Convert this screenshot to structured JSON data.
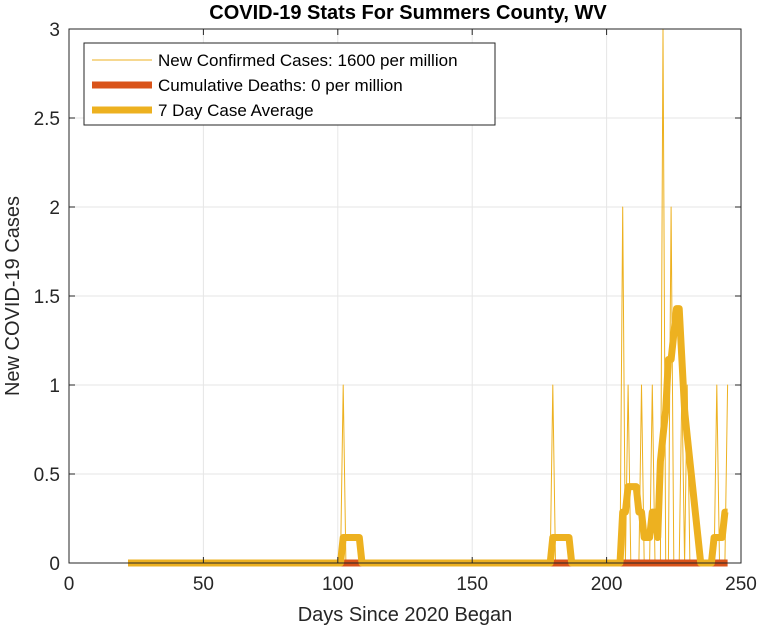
{
  "chart_data": {
    "type": "line",
    "title": "COVID-19 Stats For Summers County, WV",
    "xlabel": "Days Since 2020 Began",
    "ylabel": "New COVID-19 Cases",
    "xlim": [
      0,
      250
    ],
    "ylim": [
      0,
      3
    ],
    "xticks": [
      0,
      50,
      100,
      150,
      200,
      250
    ],
    "yticks": [
      0,
      0.5,
      1,
      1.5,
      2,
      2.5,
      3
    ],
    "xtick_labels": [
      "0",
      "50",
      "100",
      "150",
      "200",
      "250"
    ],
    "ytick_labels": [
      "0",
      "0.5",
      "1",
      "1.5",
      "2",
      "2.5",
      "3"
    ],
    "grid": true,
    "legend_position": "top-left",
    "series": [
      {
        "name": "New Confirmed Cases: 1600 per million",
        "color": "#EDB120",
        "style": "thin",
        "x": [
          22,
          101,
          102,
          103,
          179,
          180,
          181,
          205,
          206,
          207,
          208,
          209,
          212,
          213,
          214,
          216,
          217,
          218,
          220,
          221,
          222,
          223,
          224,
          225,
          227,
          228,
          229,
          230,
          231,
          232,
          240,
          241,
          242,
          244,
          245
        ],
        "y": [
          0,
          0,
          1,
          0,
          0,
          1,
          0,
          0,
          2,
          0,
          1,
          0,
          0,
          1,
          0,
          0,
          1,
          0,
          0,
          3,
          0,
          0,
          2,
          0,
          0,
          1,
          0,
          1,
          0,
          0,
          0,
          1,
          0,
          0,
          1
        ]
      },
      {
        "name": "Cumulative Deaths: 0 per million",
        "color": "#D95319",
        "style": "thick",
        "x": [
          22,
          245
        ],
        "y": [
          0,
          0
        ]
      },
      {
        "name": "7 Day Case Average",
        "color": "#EDB120",
        "style": "thick",
        "x": [
          22,
          101,
          102,
          108,
          109,
          179,
          180,
          186,
          187,
          205,
          206,
          207,
          208,
          209,
          210,
          211,
          212,
          213,
          214,
          215,
          216,
          217,
          218,
          219,
          220,
          221,
          222,
          223,
          224,
          225,
          226,
          227,
          228,
          229,
          230,
          231,
          232,
          233,
          234,
          235,
          236,
          237,
          238,
          239,
          240,
          241,
          242,
          243,
          244,
          245
        ],
        "y": [
          0,
          0,
          0.143,
          0.143,
          0,
          0,
          0.143,
          0.143,
          0,
          0,
          0.286,
          0.286,
          0.429,
          0.429,
          0.429,
          0.429,
          0.286,
          0.286,
          0.143,
          0.143,
          0.143,
          0.286,
          0.286,
          0.143,
          0.571,
          0.714,
          0.857,
          1.143,
          1.143,
          1.286,
          1.429,
          1.429,
          1.143,
          0.857,
          0.714,
          0.571,
          0.429,
          0.286,
          0.143,
          0,
          0,
          0,
          0,
          0,
          0.143,
          0.143,
          0.143,
          0.143,
          0.286,
          0.286
        ]
      }
    ]
  }
}
